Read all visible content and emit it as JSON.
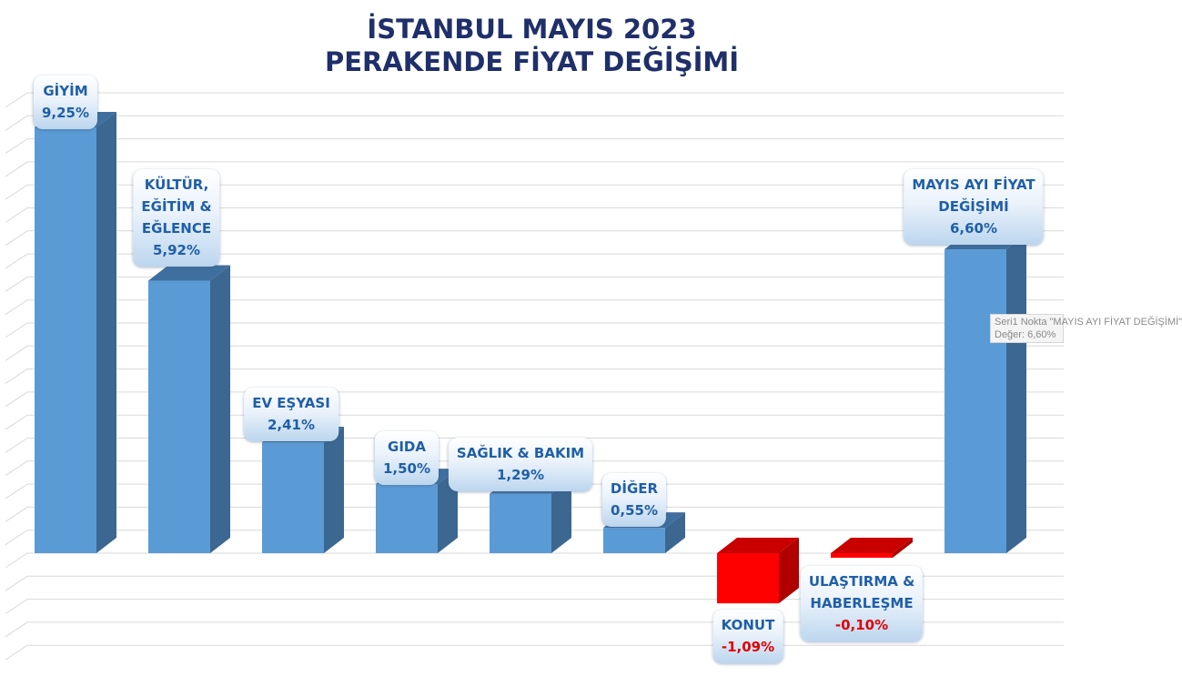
{
  "chart_data": {
    "type": "bar",
    "title": [
      "İSTANBUL MAYIS 2023",
      "PERAKENDE FİYAT DEĞİŞİMİ"
    ],
    "categories": [
      "GİYİM",
      "KÜLTÜR, EĞİTİM & EĞLENCE",
      "EV EŞYASI",
      "GIDA",
      "SAĞLIK & BAKIM",
      "DİĞER",
      "KONUT",
      "ULAŞTIRMA & HABERLEŞME",
      "MAYIS AYI FİYAT DEĞİŞİMİ"
    ],
    "category_lines": [
      [
        "GİYİM"
      ],
      [
        "KÜLTÜR,",
        "EĞİTİM &",
        "EĞLENCE"
      ],
      [
        "EV EŞYASI"
      ],
      [
        "GIDA"
      ],
      [
        "SAĞLIK & BAKIM"
      ],
      [
        "DİĞER"
      ],
      [
        "KONUT"
      ],
      [
        "ULAŞTIRMA &",
        "HABERLEŞME"
      ],
      [
        "MAYIS AYI FİYAT",
        "DEĞİŞİMİ"
      ]
    ],
    "values": [
      9.25,
      5.92,
      2.41,
      1.5,
      1.29,
      0.55,
      -1.09,
      -0.1,
      6.6
    ],
    "value_labels": [
      "9,25%",
      "5,92%",
      "2,41%",
      "1,50%",
      "1,29%",
      "0,55%",
      "-1,09%",
      "-0,10%",
      "6,60%"
    ],
    "ylim": [
      -2,
      10
    ],
    "grid": true,
    "legend": "none",
    "colors": {
      "positive": "#5b9bd5",
      "positive_side": "#3b6791",
      "positive_top": "#3f6f9e",
      "negative": "#ff0000",
      "negative_side": "#b00000",
      "negative_top": "#c80000",
      "grid": "#d9d9d9",
      "title": "#1f2f6a",
      "label": "#1f5fa8"
    }
  },
  "tooltip": {
    "line1": "Seri1 Nokta \"MAYIS AYI FİYAT DEĞİŞİMİ\"",
    "line2": "Değer: 6,60%"
  }
}
